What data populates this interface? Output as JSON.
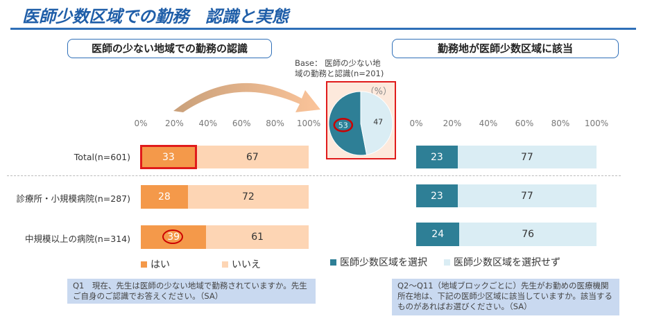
{
  "title": "医師少数区域での勤務　認識と実態",
  "left_subtitle": "医師の少ない地域での勤務の認識",
  "right_subtitle": "勤務地が医師少数区域に該当",
  "pie_base": [
    "Base： 医師の少ない地",
    "域の勤務と認識(n=201)"
  ],
  "pie_unit": "（%）",
  "colors": {
    "yes": "#f4994a",
    "no": "#fdd5b4",
    "in_area": "#2e7f96",
    "not_area": "#daedf4",
    "highlight": "#e01b1b",
    "title": "#1f5ea8"
  },
  "ticks": [
    "0%",
    "20%",
    "40%",
    "60%",
    "80%",
    "100%"
  ],
  "chart_data": [
    {
      "type": "bar",
      "stacked": true,
      "orientation": "horizontal",
      "categories": [
        "Total(n=601)",
        "診療所・小規模病院(n=287)",
        "中規模以上の病院(n=314)"
      ],
      "series": [
        {
          "name": "はい",
          "values": [
            33,
            28,
            39
          ]
        },
        {
          "name": "いいえ",
          "values": [
            67,
            72,
            61
          ]
        }
      ],
      "xlim": [
        0,
        100
      ],
      "legend": "bottom"
    },
    {
      "type": "pie",
      "values": [
        53,
        47
      ],
      "labels": [
        "53",
        "47"
      ]
    },
    {
      "type": "bar",
      "stacked": true,
      "orientation": "horizontal",
      "series": [
        {
          "name": "医師少数区域を選択",
          "values": [
            23,
            23,
            24
          ]
        },
        {
          "name": "医師少数区域を選択せず",
          "values": [
            77,
            77,
            76
          ]
        }
      ],
      "xlim": [
        0,
        100
      ],
      "legend": "bottom"
    }
  ],
  "notes": {
    "left": "Q1　現在、先生は医師の少ない地域で勤務されていますか。先生ご自身のご認識でお答えください。（SA）",
    "right": "Q2～Q11（地域ブロックごとに）先生がお勤めの医療機関所在地は、下記の医師少区域に該当していますか。該当するものがあればお選びください。（SA）"
  }
}
